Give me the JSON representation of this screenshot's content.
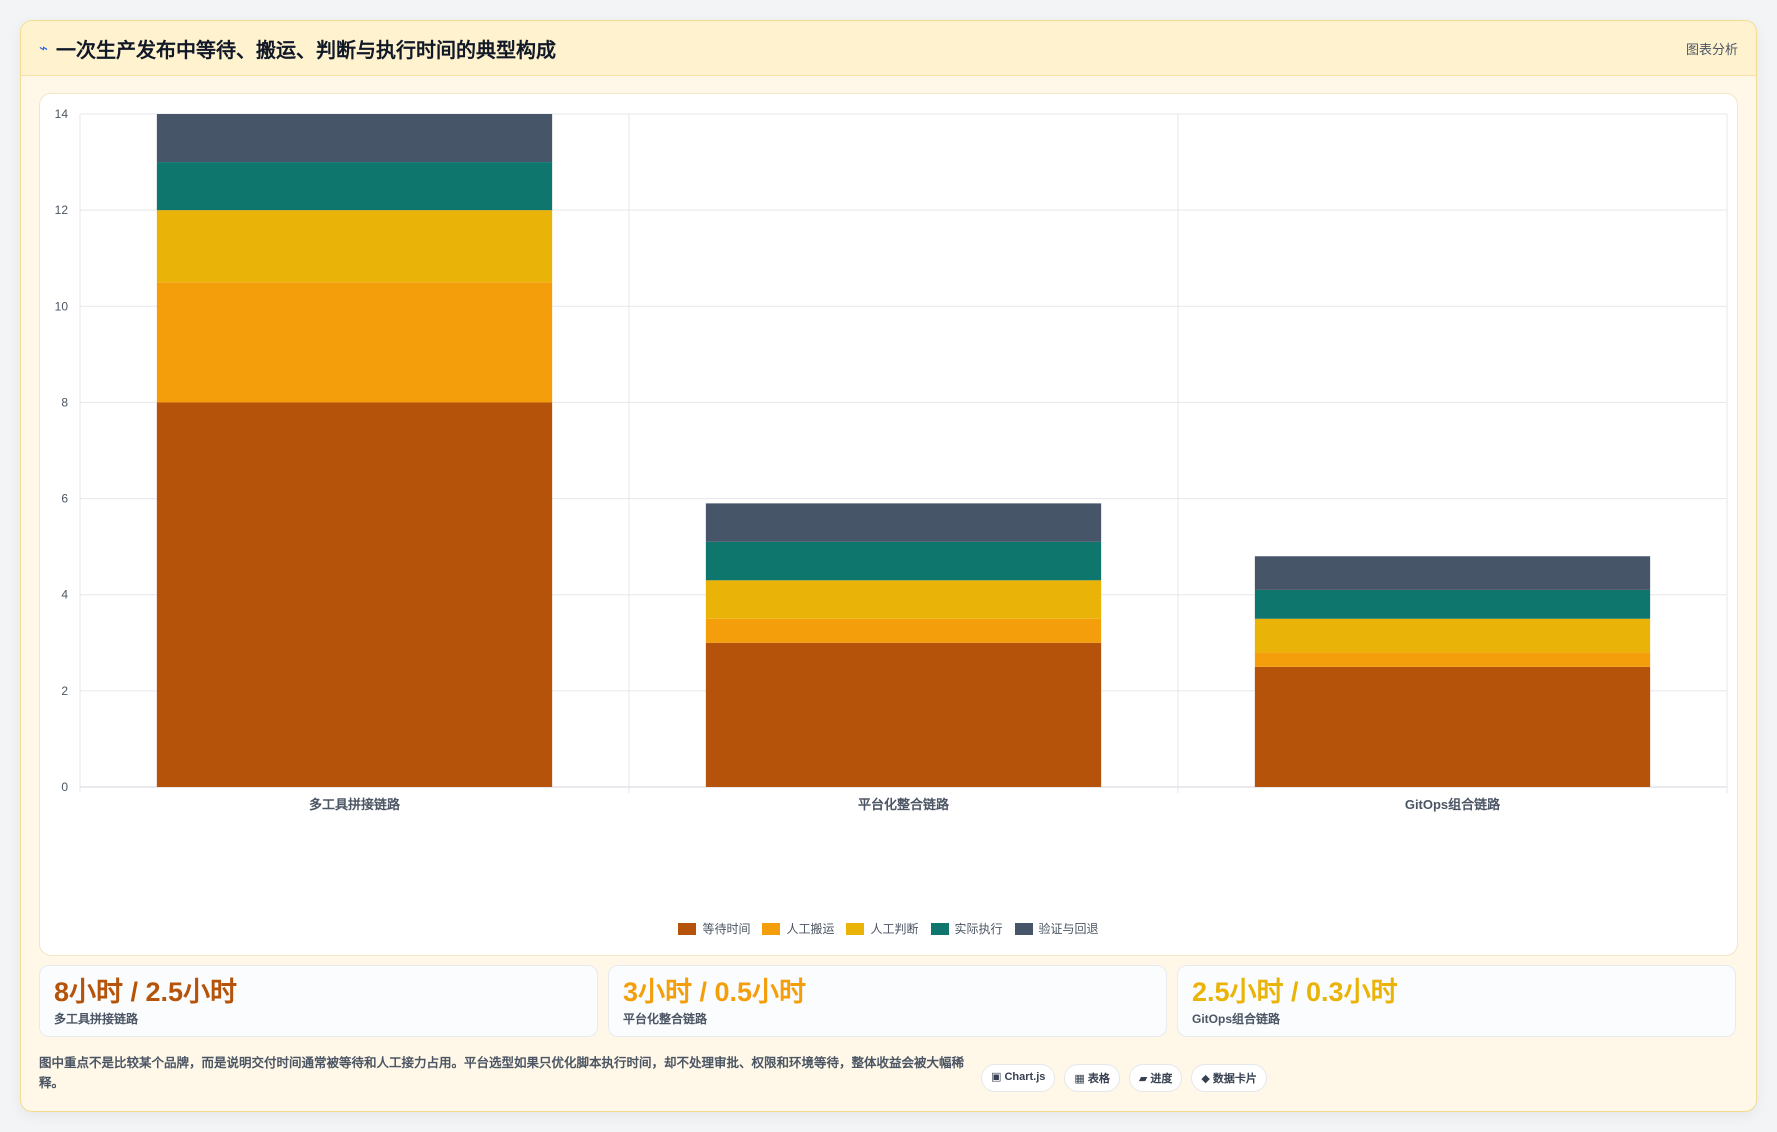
{
  "header": {
    "icon": "⌁",
    "title": "一次生产发布中等待、搬运、判断与执行时间的典型构成",
    "subtitle": "图表分析"
  },
  "chart_data": {
    "type": "bar",
    "stacked": true,
    "categories": [
      "多工具拼接链路",
      "平台化整合链路",
      "GitOps组合链路"
    ],
    "series": [
      {
        "name": "等待时间",
        "color": "#b45309",
        "values": [
          8,
          3,
          2.5
        ]
      },
      {
        "name": "人工搬运",
        "color": "#f59e0b",
        "values": [
          2.5,
          0.5,
          0.3
        ]
      },
      {
        "name": "人工判断",
        "color": "#eab308",
        "values": [
          1.5,
          0.8,
          0.7
        ]
      },
      {
        "name": "实际执行",
        "color": "#0f766e",
        "values": [
          1,
          0.8,
          0.6
        ]
      },
      {
        "name": "验证与回退",
        "color": "#475569",
        "values": [
          1,
          0.8,
          0.7
        ]
      }
    ],
    "ylim": [
      0,
      14
    ],
    "yticks": [
      "0",
      "2",
      "4",
      "6",
      "8",
      "10",
      "12",
      "14"
    ],
    "grid": true,
    "legend_position": "bottom"
  },
  "cards": [
    {
      "value": "8小时 / 2.5小时",
      "label": "多工具拼接链路",
      "color": "#b45309"
    },
    {
      "value": "3小时 / 0.5小时",
      "label": "平台化整合链路",
      "color": "#f59e0b"
    },
    {
      "value": "2.5小时 / 0.3小时",
      "label": "GitOps组合链路",
      "color": "#eab308"
    }
  ],
  "note": "图中重点不是比较某个品牌，而是说明交付时间通常被等待和人工接力占用。平台选型如果只优化脚本执行时间，却不处理审批、权限和环境等待，整体收益会被大幅稀释。",
  "tags": [
    "▣ Chart.js",
    "▦ 表格",
    "▰ 进度",
    "◆ 数据卡片"
  ]
}
